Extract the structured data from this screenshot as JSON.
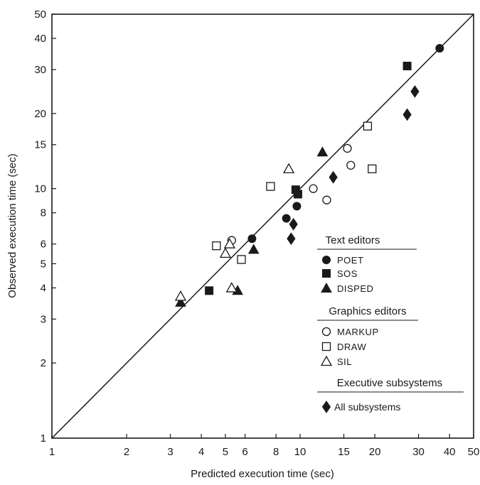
{
  "chart_data": {
    "type": "scatter",
    "title": "",
    "xlabel": "Predicted execution time (sec)",
    "ylabel": "Observed execution time (sec)",
    "x_scale": "log",
    "y_scale": "log",
    "xlim": [
      1,
      50
    ],
    "ylim": [
      1,
      50
    ],
    "x_ticks": [
      "1",
      "2",
      "3",
      "4",
      "5",
      "6",
      "8",
      "10",
      "15",
      "20",
      "30",
      "40",
      "50"
    ],
    "y_ticks": [
      "1",
      "2",
      "3",
      "4",
      "5",
      "6",
      "8",
      "10",
      "15",
      "20",
      "30",
      "40",
      "50"
    ],
    "grid": false,
    "reference_line": {
      "from": [
        1,
        1
      ],
      "to": [
        50,
        50
      ]
    },
    "legend_groups": [
      {
        "heading": "Text editors",
        "series": [
          "POET",
          "SOS",
          "DISPED"
        ]
      },
      {
        "heading": "Graphics editors",
        "series": [
          "MARKUP",
          "DRAW",
          "SIL"
        ]
      },
      {
        "heading": "Executive subsystems",
        "series": [
          "All subsystems"
        ]
      }
    ],
    "series": [
      {
        "name": "POET",
        "marker": "filled-circle",
        "x": [
          6.4,
          8.8,
          9.7,
          36.5
        ],
        "y": [
          6.3,
          7.6,
          8.5,
          36.5
        ]
      },
      {
        "name": "SOS",
        "marker": "filled-square",
        "x": [
          4.3,
          9.6,
          9.8,
          27.0
        ],
        "y": [
          3.9,
          9.9,
          9.5,
          31.0
        ]
      },
      {
        "name": "DISPED",
        "marker": "filled-triangle",
        "x": [
          3.3,
          5.6,
          6.5,
          12.3
        ],
        "y": [
          3.5,
          3.9,
          5.7,
          14.0
        ]
      },
      {
        "name": "MARKUP",
        "marker": "open-circle",
        "x": [
          5.3,
          11.3,
          12.8,
          15.5,
          16.0
        ],
        "y": [
          6.2,
          10.0,
          9.0,
          14.5,
          12.4
        ]
      },
      {
        "name": "DRAW",
        "marker": "open-square",
        "x": [
          4.6,
          5.8,
          7.6,
          18.7,
          19.5
        ],
        "y": [
          5.9,
          5.2,
          10.2,
          17.8,
          12.0
        ]
      },
      {
        "name": "SIL",
        "marker": "open-triangle",
        "x": [
          3.3,
          5.0,
          5.2,
          5.3,
          9.0
        ],
        "y": [
          3.7,
          5.5,
          6.0,
          4.0,
          12.0
        ]
      },
      {
        "name": "All subsystems",
        "marker": "filled-diamond",
        "x": [
          9.2,
          9.4,
          13.6,
          27.0,
          29.0
        ],
        "y": [
          6.3,
          7.2,
          11.1,
          19.8,
          24.5
        ]
      }
    ]
  }
}
